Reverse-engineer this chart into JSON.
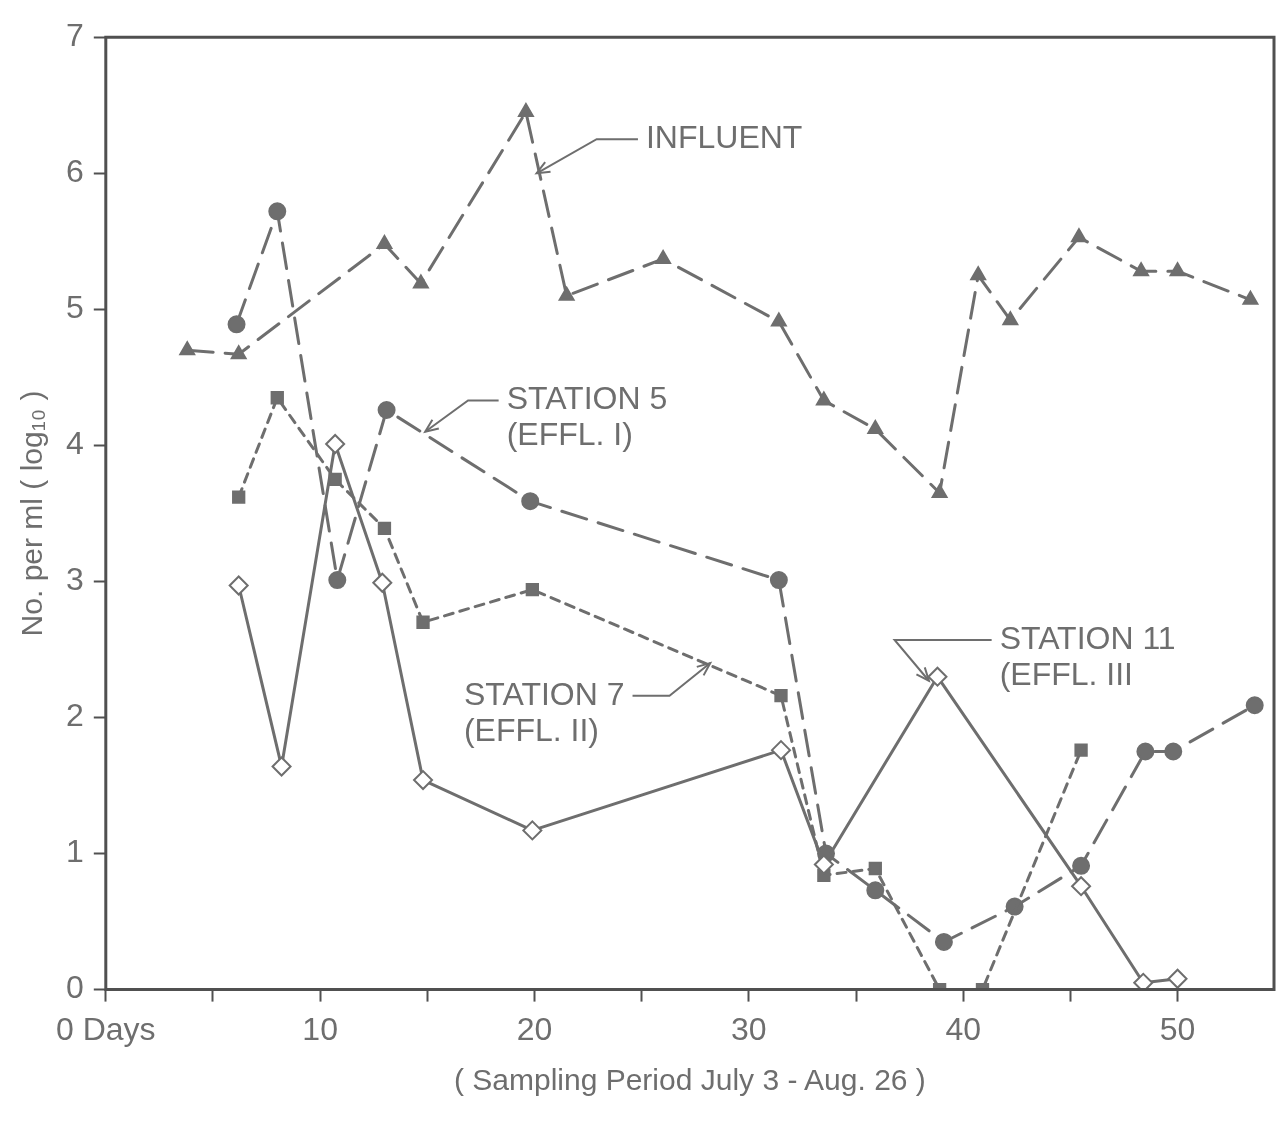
{
  "chart_data": {
    "type": "line",
    "xlabel": "( Sampling Period July 3 - Aug. 26 )",
    "ylabel": "No. per ml ( log₁₀ )",
    "xlim": [
      0,
      54.5
    ],
    "xticks": [
      {
        "value": 0,
        "label": "0 Days"
      },
      {
        "value": 5,
        "label": null
      },
      10,
      {
        "value": 15,
        "label": null
      },
      20,
      {
        "value": 25,
        "label": null
      },
      30,
      {
        "value": 35,
        "label": null
      },
      40,
      {
        "value": 45,
        "label": null
      },
      50
    ],
    "ylim": [
      0,
      7
    ],
    "yticks": [
      0,
      1,
      2,
      3,
      4,
      5,
      6,
      7
    ],
    "grid": false,
    "legend": false,
    "annotations": [
      {
        "text": "INFLUENT",
        "x": 20.1,
        "y": 6.0
      },
      {
        "text": "STATION 5 (EFFL. I)",
        "x": 14.9,
        "y": 4.1
      },
      {
        "text": "STATION 7 (EFFL. II)",
        "x": 28.2,
        "y": 2.4
      },
      {
        "text": "STATION 11 (EFFL. III",
        "x": 38.4,
        "y": 2.27
      }
    ],
    "series": [
      {
        "color": "#6e6e6e",
        "marker": "triangle",
        "line_style": "dashed",
        "x": [
          3.8,
          6.2,
          13.0,
          14.7,
          19.6,
          21.5,
          26.0,
          31.4,
          33.5,
          35.9,
          38.9,
          40.7,
          42.2,
          45.4,
          48.3,
          50.0,
          53.4
        ],
        "values": [
          4.7,
          4.67,
          5.48,
          5.19,
          6.45,
          5.1,
          5.37,
          4.91,
          4.33,
          4.12,
          3.65,
          5.25,
          4.92,
          5.53,
          5.28,
          5.28,
          5.07
        ]
      },
      {
        "color": "#6e6e6e",
        "marker": "circle",
        "line_style": "dashed",
        "x": [
          6.1,
          8.0,
          10.8,
          13.1,
          19.8,
          31.4,
          33.6,
          35.9,
          39.1,
          42.4,
          45.5,
          48.5,
          49.8,
          53.6
        ],
        "values": [
          4.89,
          5.72,
          3.01,
          4.26,
          3.59,
          3.01,
          1.0,
          0.73,
          0.35,
          0.61,
          0.91,
          1.75,
          1.75,
          2.09
        ]
      },
      {
        "color": "#6e6e6e",
        "marker": "square",
        "line_style": "dotted",
        "x": [
          6.2,
          8.0,
          10.7,
          13.0,
          14.8,
          19.9,
          31.5,
          33.5,
          35.9,
          38.9,
          40.9,
          45.5
        ],
        "values": [
          3.62,
          4.35,
          3.75,
          3.39,
          2.7,
          2.94,
          2.16,
          0.84,
          0.89,
          0,
          0,
          1.76
        ]
      },
      {
        "color": "#6e6e6e",
        "marker": "diamond",
        "line_style": "solid",
        "x": [
          6.2,
          8.2,
          10.7,
          12.9,
          14.8,
          19.9,
          31.5,
          33.5,
          38.8,
          45.5,
          48.4,
          50.0
        ],
        "values": [
          2.97,
          1.64,
          4.01,
          2.99,
          1.54,
          1.17,
          1.76,
          0.92,
          2.3,
          0.76,
          0.05,
          0.08
        ]
      }
    ]
  }
}
